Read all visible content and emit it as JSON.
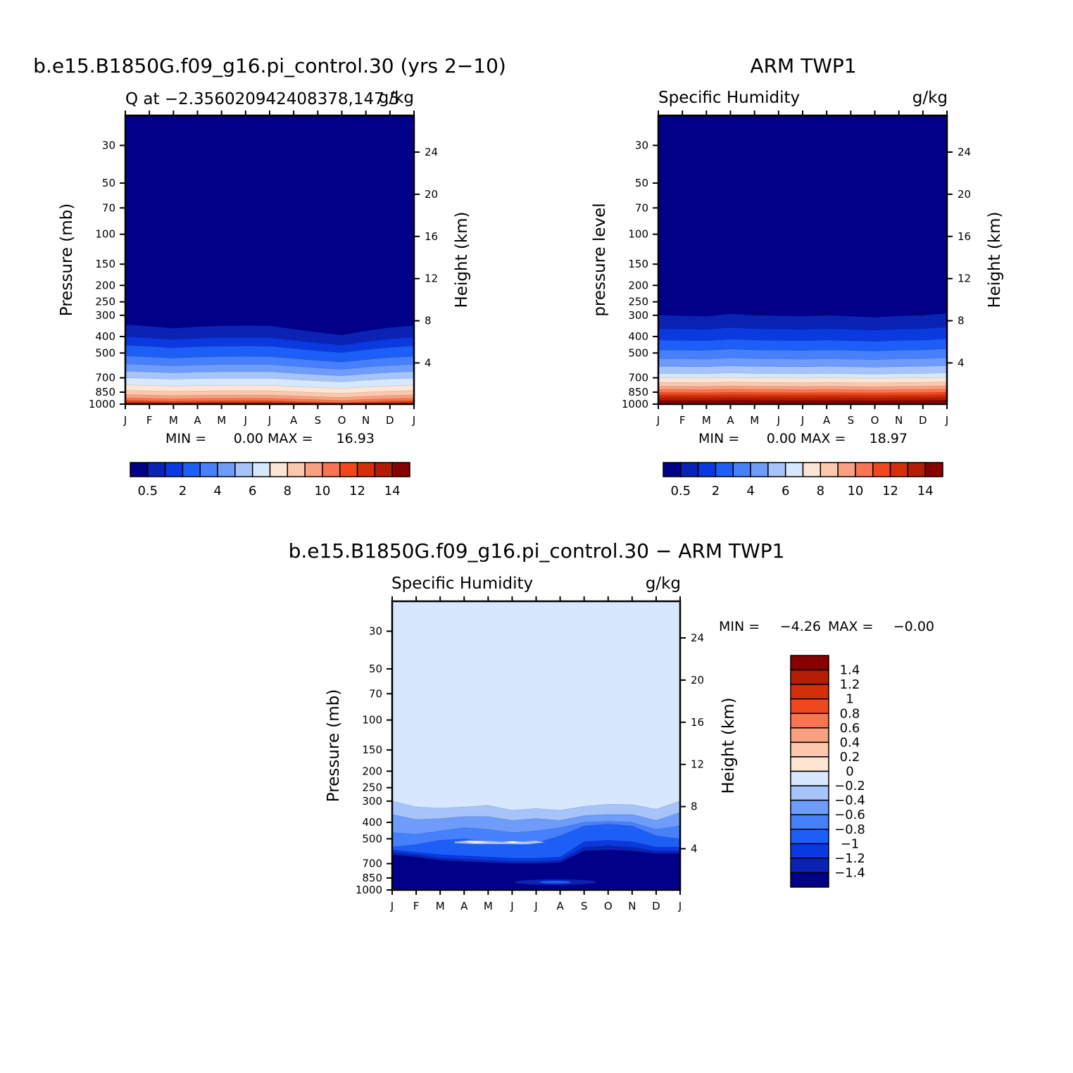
{
  "colors": {
    "q_levels": [
      "#000088",
      "#0b23b4",
      "#0b39e0",
      "#1d5ef7",
      "#4680fc",
      "#6e9cfb",
      "#a6c3fa",
      "#d7e8fe",
      "#fde5d4",
      "#fcc8ac",
      "#f9a080",
      "#f87452",
      "#f0481e",
      "#d42f08",
      "#b21d04",
      "#880000"
    ],
    "diff_levels": [
      "#000088",
      "#0b23b4",
      "#0b39e0",
      "#1d5ef7",
      "#4680fc",
      "#6e9cfb",
      "#a6c3fa",
      "#d7e8fe",
      "#fde5d4",
      "#fcc8ac",
      "#f9a080",
      "#f87452",
      "#f0481e",
      "#d42f08",
      "#b21d04",
      "#880000"
    ]
  },
  "chart_data": [
    {
      "type": "contour",
      "title": "b.e15.B1850G.f09_g16.pi_control.30 (yrs 2−10)",
      "subtitle_left": "Q at −2.356020942408378,147.5",
      "subtitle_right": "g/kg",
      "xlabel": "",
      "ylabel": "Pressure (mb)",
      "ylabel_right": "Height (km)",
      "x_ticks": [
        "J",
        "F",
        "M",
        "A",
        "M",
        "J",
        "J",
        "A",
        "S",
        "O",
        "N",
        "D",
        "J"
      ],
      "y_ticks": [
        "30",
        "50",
        "70",
        "100",
        "150",
        "200",
        "250",
        "300",
        "400",
        "500",
        "700",
        "850",
        "1000"
      ],
      "y_ticks_right": [
        "24",
        "20",
        "16",
        "12",
        "8",
        "4"
      ],
      "min_label": "MIN =",
      "min_value": "0.00",
      "max_label": "MAX =",
      "max_value": "16.93",
      "colorbar_labels": [
        "0.5",
        "2",
        "4",
        "6",
        "8",
        "10",
        "12",
        "14"
      ],
      "field": {
        "x": [
          0,
          1,
          2,
          3,
          4,
          5,
          6,
          7,
          8,
          9,
          10,
          11,
          12
        ],
        "level_pressures": [
          340,
          400,
          450,
          520,
          580,
          640,
          700,
          770,
          830,
          880,
          920,
          950,
          970,
          985,
          995
        ],
        "pressure_shift_per_month": [
          0,
          8,
          18,
          10,
          6,
          5,
          6,
          22,
          38,
          52,
          30,
          14,
          4
        ]
      }
    },
    {
      "type": "contour",
      "title": "ARM TWP1",
      "subtitle_left": "Specific Humidity",
      "subtitle_right": "g/kg",
      "xlabel": "",
      "ylabel": "pressure level",
      "ylabel_right": "Height (km)",
      "x_ticks": [
        "J",
        "F",
        "M",
        "A",
        "M",
        "J",
        "J",
        "A",
        "S",
        "O",
        "N",
        "D",
        "J"
      ],
      "y_ticks": [
        "30",
        "50",
        "70",
        "100",
        "150",
        "200",
        "250",
        "300",
        "400",
        "500",
        "700",
        "850",
        "1000"
      ],
      "y_ticks_right": [
        "24",
        "20",
        "16",
        "12",
        "8",
        "4"
      ],
      "min_label": "MIN =",
      "min_value": "0.00",
      "max_label": "MAX =",
      "max_value": "18.97",
      "colorbar_labels": [
        "0.5",
        "2",
        "4",
        "6",
        "8",
        "10",
        "12",
        "14"
      ],
      "field": {
        "x": [
          0,
          1,
          2,
          3,
          4,
          5,
          6,
          7,
          8,
          9,
          10,
          11,
          12
        ],
        "level_pressures": [
          300,
          360,
          420,
          480,
          540,
          600,
          660,
          700,
          745,
          785,
          820,
          855,
          885,
          915,
          950
        ],
        "pressure_shift_per_month": [
          0,
          2,
          4,
          -6,
          0,
          2,
          4,
          0,
          4,
          8,
          2,
          0,
          -8
        ]
      }
    },
    {
      "type": "contour",
      "title": "b.e15.B1850G.f09_g16.pi_control.30 − ARM TWP1",
      "subtitle_left": "Specific Humidity",
      "subtitle_right": "g/kg",
      "xlabel": "",
      "ylabel": "Pressure (mb)",
      "ylabel_right": "Height (km)",
      "x_ticks": [
        "J",
        "F",
        "M",
        "A",
        "M",
        "J",
        "J",
        "A",
        "S",
        "O",
        "N",
        "D",
        "J"
      ],
      "y_ticks": [
        "30",
        "50",
        "70",
        "100",
        "150",
        "200",
        "250",
        "300",
        "400",
        "500",
        "700",
        "850",
        "1000"
      ],
      "y_ticks_right": [
        "24",
        "20",
        "16",
        "12",
        "8",
        "4"
      ],
      "min_label": "MIN =",
      "min_value": "−4.26",
      "max_label": "MAX =",
      "max_value": "−0.00",
      "colorbar_labels": [
        "1.4",
        "1.2",
        "1",
        "0.8",
        "0.6",
        "0.4",
        "0.2",
        "0",
        "−0.2",
        "−0.4",
        "−0.6",
        "−0.8",
        "−1",
        "−1.2",
        "−1.4"
      ],
      "field": {
        "x": [
          0,
          1,
          2,
          3,
          4,
          5,
          6,
          7,
          8,
          9,
          10,
          11,
          12
        ],
        "levels": [
          -0.2,
          -0.4,
          -0.6,
          -0.8,
          -1.0,
          -1.2,
          -1.4
        ],
        "level_pressures_by_month": [
          [
            300,
            360,
            460,
            560,
            580,
            600,
            620
          ],
          [
            325,
            385,
            470,
            540,
            600,
            620,
            640
          ],
          [
            330,
            380,
            450,
            510,
            620,
            650,
            670
          ],
          [
            325,
            370,
            430,
            500,
            630,
            660,
            680
          ],
          [
            318,
            370,
            440,
            520,
            640,
            670,
            690
          ],
          [
            340,
            390,
            460,
            540,
            650,
            680,
            700
          ],
          [
            332,
            380,
            450,
            530,
            650,
            680,
            700
          ],
          [
            340,
            390,
            430,
            480,
            640,
            670,
            690
          ],
          [
            322,
            365,
            400,
            420,
            520,
            560,
            590
          ],
          [
            313,
            360,
            395,
            410,
            510,
            550,
            580
          ],
          [
            315,
            360,
            400,
            420,
            520,
            560,
            590
          ],
          [
            335,
            390,
            440,
            480,
            560,
            590,
            610
          ],
          [
            300,
            350,
            420,
            500,
            560,
            590,
            610
          ]
        ]
      }
    }
  ]
}
